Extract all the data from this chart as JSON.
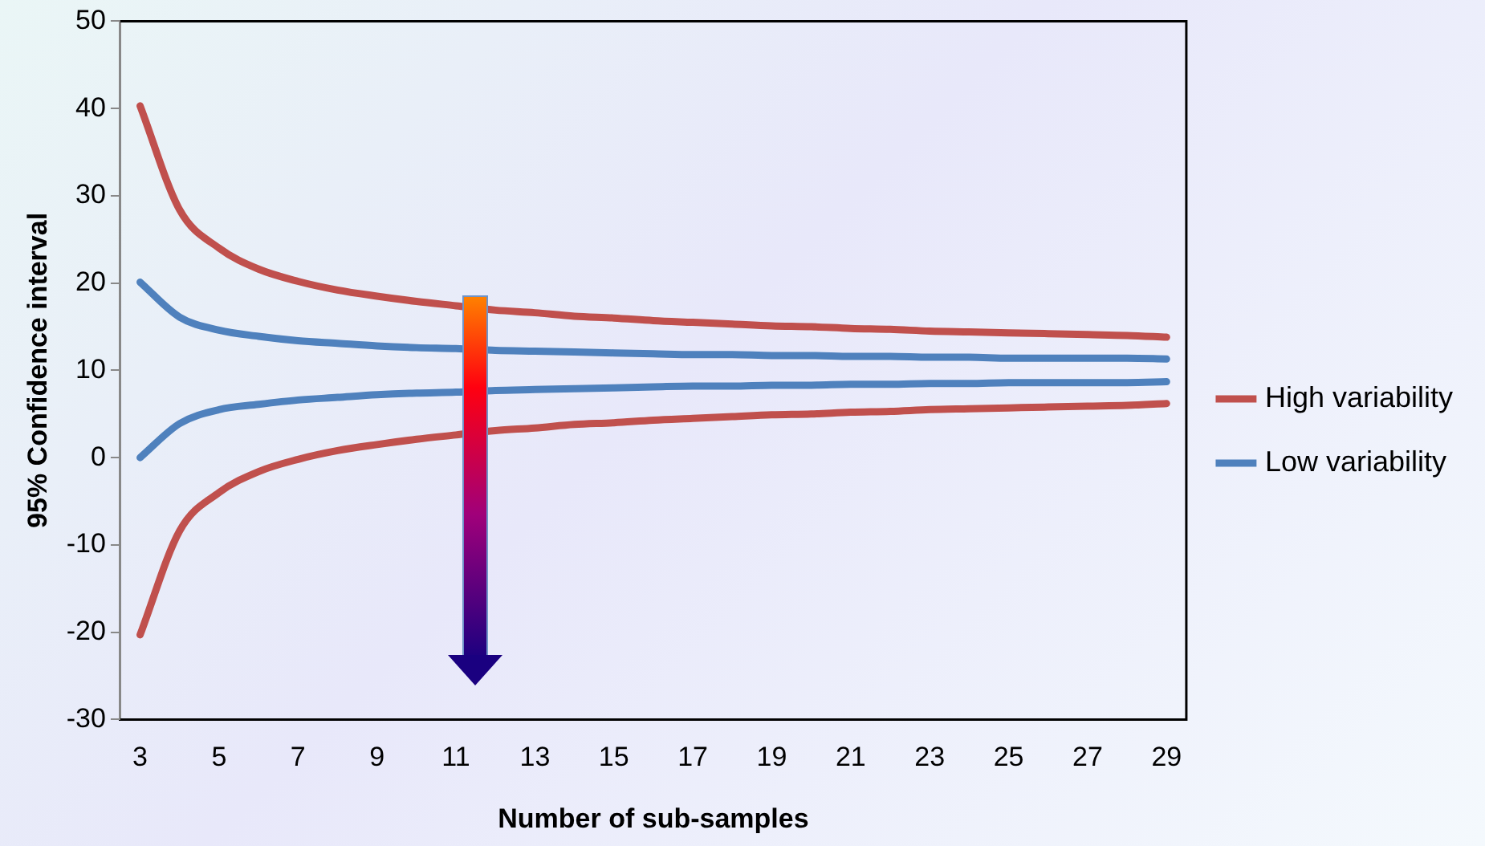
{
  "chart_data": {
    "type": "line",
    "xlabel": "Number of sub-samples",
    "ylabel": "95% Confidence interval",
    "categories": [
      "3",
      null,
      "5",
      null,
      "7",
      null,
      "9",
      null,
      "11",
      null,
      "13",
      null,
      "15",
      null,
      "17",
      null,
      "19",
      null,
      "21",
      null,
      "23",
      null,
      "25",
      null,
      "27",
      null,
      "29"
    ],
    "series": [
      {
        "name": "High variability",
        "color": "#c0504d",
        "values": [
          40.3,
          28.4,
          24.0,
          21.6,
          20.2,
          19.2,
          18.5,
          17.9,
          17.4,
          16.9,
          16.6,
          16.2,
          16.0,
          15.7,
          15.5,
          15.3,
          15.1,
          15.0,
          14.8,
          14.7,
          14.5,
          14.4,
          14.3,
          14.2,
          14.1,
          14.0,
          13.8
        ]
      },
      {
        "color": "#c0504d",
        "values": [
          -20.3,
          -8.4,
          -4.0,
          -1.6,
          -0.2,
          0.8,
          1.5,
          2.1,
          2.6,
          3.1,
          3.4,
          3.8,
          4.0,
          4.3,
          4.5,
          4.7,
          4.9,
          5.0,
          5.2,
          5.3,
          5.5,
          5.6,
          5.7,
          5.8,
          5.9,
          6.0,
          6.2
        ]
      },
      {
        "name": "Low variability",
        "color": "#4f81bd",
        "values": [
          20.1,
          16.1,
          14.6,
          13.9,
          13.4,
          13.1,
          12.8,
          12.6,
          12.5,
          12.3,
          12.2,
          12.1,
          12.0,
          11.9,
          11.8,
          11.8,
          11.7,
          11.7,
          11.6,
          11.6,
          11.5,
          11.5,
          11.4,
          11.4,
          11.4,
          11.4,
          11.3
        ]
      },
      {
        "color": "#4f81bd",
        "values": [
          0.0,
          3.9,
          5.5,
          6.1,
          6.6,
          6.9,
          7.2,
          7.4,
          7.5,
          7.7,
          7.8,
          7.9,
          8.0,
          8.1,
          8.2,
          8.2,
          8.3,
          8.3,
          8.4,
          8.4,
          8.5,
          8.5,
          8.6,
          8.6,
          8.6,
          8.6,
          8.7
        ]
      }
    ],
    "ylim": [
      -30,
      50
    ],
    "yticks": [
      -30,
      -20,
      -10,
      0,
      10,
      20,
      30,
      40,
      50
    ],
    "grid": false,
    "legend": "right",
    "marker": "none",
    "line_style": "solid"
  }
}
